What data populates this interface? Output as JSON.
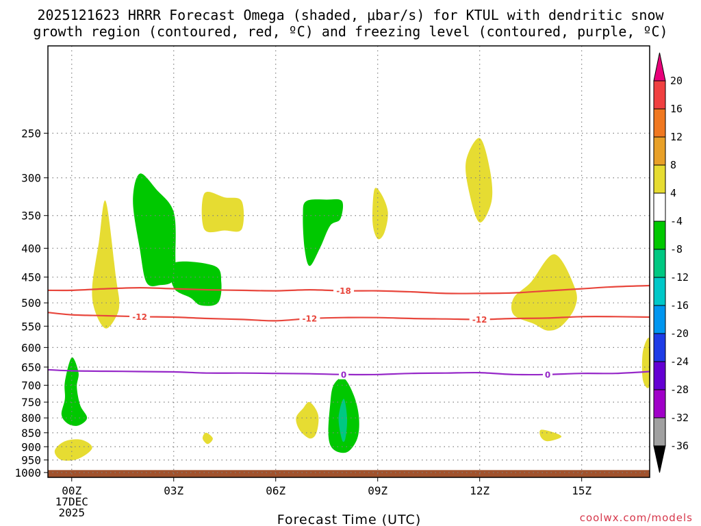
{
  "title_line1": "2025121623 HRRR Forecast Omega (shaded, μbar/s) for KTUL with dendritic snow",
  "title_line2": "growth region (contoured, red, ºC) and freezing level (contoured, purple, ºC)",
  "credit": "coolwx.com/models",
  "chart_data": {
    "type": "contour",
    "title": "2025121623 HRRR Forecast Omega (shaded, μbar/s) for KTUL with dendritic snow growth region (contoured, red, ºC) and freezing level (contoured, purple, ºC)",
    "xlabel": "Forecast Time (UTC)",
    "ylabel": "",
    "x_range_hours": [
      -0.7,
      17
    ],
    "x_ticks": [
      {
        "hour": 0,
        "label": "00Z",
        "sub1": "17DEC",
        "sub2": "2025"
      },
      {
        "hour": 3,
        "label": "03Z"
      },
      {
        "hour": 6,
        "label": "06Z"
      },
      {
        "hour": 9,
        "label": "09Z"
      },
      {
        "hour": 12,
        "label": "12Z"
      },
      {
        "hour": 15,
        "label": "15Z"
      }
    ],
    "y_range_mb": [
      175,
      1020
    ],
    "y_ticks": [
      {
        "p": 250,
        "label": "250"
      },
      {
        "p": 300,
        "label": "300"
      },
      {
        "p": 350,
        "label": "350"
      },
      {
        "p": 400,
        "label": "400"
      },
      {
        "p": 450,
        "label": "450"
      },
      {
        "p": 500,
        "label": "500"
      },
      {
        "p": 550,
        "label": "550"
      },
      {
        "p": 600,
        "label": "600"
      },
      {
        "p": 650,
        "label": "650"
      },
      {
        "p": 700,
        "label": "700"
      },
      {
        "p": 750,
        "label": "750"
      },
      {
        "p": 800,
        "label": "800"
      },
      {
        "p": 850,
        "label": "850"
      },
      {
        "p": 900,
        "label": "900"
      },
      {
        "p": 950,
        "label": "950"
      },
      {
        "p": 1000,
        "label": "1000"
      }
    ],
    "ground_pressure_mb": 990,
    "colorbar": {
      "bands": [
        {
          "color": "#e8007a"
        },
        {
          "color": "#f04040"
        },
        {
          "color": "#f07820"
        },
        {
          "color": "#e8a028"
        },
        {
          "color": "#e6dc32"
        },
        {
          "color": "#ffffff"
        },
        {
          "color": "#00c800"
        },
        {
          "color": "#00c882"
        },
        {
          "color": "#00c8c8"
        },
        {
          "color": "#0096f0"
        },
        {
          "color": "#1e3ce6"
        },
        {
          "color": "#6400d2"
        },
        {
          "color": "#a000c8"
        },
        {
          "color": "#a0a0a0"
        },
        {
          "color": "#000000"
        }
      ],
      "labels": [
        "20",
        "16",
        "12",
        "8",
        "4",
        "-4",
        "-8",
        "-12",
        "-16",
        "-20",
        "-24",
        "-28",
        "-32",
        "-36"
      ]
    },
    "contour_lines": [
      {
        "name": "-18C",
        "label": "-18",
        "color": "#e8463c",
        "points": [
          [
            -0.7,
            475
          ],
          [
            0,
            475
          ],
          [
            1,
            472
          ],
          [
            2,
            470
          ],
          [
            3,
            472
          ],
          [
            4,
            474
          ],
          [
            5,
            475
          ],
          [
            6,
            476
          ],
          [
            7,
            474
          ],
          [
            8,
            476
          ],
          [
            9,
            476
          ],
          [
            10,
            478
          ],
          [
            11,
            481
          ],
          [
            12,
            481
          ],
          [
            13,
            480
          ],
          [
            14,
            476
          ],
          [
            15,
            472
          ],
          [
            16,
            468
          ],
          [
            17,
            466
          ]
        ],
        "labels_at": [
          8
        ]
      },
      {
        "name": "-12C",
        "label": "-12",
        "color": "#e8463c",
        "points": [
          [
            -0.7,
            520
          ],
          [
            0,
            525
          ],
          [
            1,
            527
          ],
          [
            2,
            529
          ],
          [
            3,
            530
          ],
          [
            4,
            533
          ],
          [
            5,
            535
          ],
          [
            6,
            538
          ],
          [
            7,
            533
          ],
          [
            8,
            531
          ],
          [
            9,
            531
          ],
          [
            10,
            533
          ],
          [
            11,
            534
          ],
          [
            12,
            535
          ],
          [
            13,
            533
          ],
          [
            14,
            532
          ],
          [
            15,
            529
          ],
          [
            16,
            529
          ],
          [
            17,
            530
          ]
        ],
        "labels_at": [
          2,
          7,
          12
        ]
      },
      {
        "name": "0C freezing level",
        "label": "0",
        "color": "#9628c8",
        "points": [
          [
            -0.7,
            657
          ],
          [
            0,
            660
          ],
          [
            1,
            661
          ],
          [
            2,
            662
          ],
          [
            3,
            663
          ],
          [
            4,
            666
          ],
          [
            5,
            666
          ],
          [
            6,
            667
          ],
          [
            7,
            668
          ],
          [
            8,
            670
          ],
          [
            9,
            670
          ],
          [
            10,
            667
          ],
          [
            11,
            666
          ],
          [
            12,
            665
          ],
          [
            13,
            670
          ],
          [
            14,
            670
          ],
          [
            15,
            667
          ],
          [
            16,
            667
          ],
          [
            17,
            662
          ]
        ],
        "labels_at": [
          8,
          14
        ]
      }
    ],
    "shaded_regions": [
      {
        "value_range": "4 to 8",
        "color": "#e6dc32",
        "points": [
          [
            1.0,
            330
          ],
          [
            1.3,
            450
          ],
          [
            1.4,
            500
          ],
          [
            1.3,
            530
          ],
          [
            1.0,
            555
          ],
          [
            0.7,
            520
          ],
          [
            0.6,
            470
          ],
          [
            0.8,
            390
          ]
        ]
      },
      {
        "value_range": "-4 to -8",
        "color": "#00c800",
        "points": [
          [
            2.0,
            295
          ],
          [
            2.5,
            315
          ],
          [
            3.0,
            345
          ],
          [
            3.05,
            410
          ],
          [
            3.0,
            455
          ],
          [
            2.6,
            465
          ],
          [
            2.2,
            460
          ],
          [
            2.0,
            400
          ],
          [
            1.8,
            330
          ]
        ]
      },
      {
        "value_range": "-4 to -8",
        "color": "#00c800",
        "points": [
          [
            3.0,
            425
          ],
          [
            4.2,
            430
          ],
          [
            4.4,
            460
          ],
          [
            4.3,
            500
          ],
          [
            3.8,
            505
          ],
          [
            3.5,
            490
          ],
          [
            3.0,
            470
          ]
        ]
      },
      {
        "value_range": "4 to 8",
        "color": "#e6dc32",
        "points": [
          [
            3.9,
            320
          ],
          [
            4.5,
            325
          ],
          [
            5.0,
            330
          ],
          [
            5.0,
            370
          ],
          [
            4.5,
            372
          ],
          [
            3.9,
            370
          ]
        ]
      },
      {
        "value_range": "-4 to -8",
        "color": "#00c800",
        "points": [
          [
            6.9,
            330
          ],
          [
            7.5,
            328
          ],
          [
            7.95,
            330
          ],
          [
            7.9,
            355
          ],
          [
            7.6,
            365
          ],
          [
            7.3,
            400
          ],
          [
            7.0,
            430
          ],
          [
            6.85,
            400
          ],
          [
            6.8,
            350
          ]
        ]
      },
      {
        "value_range": "4 to 8",
        "color": "#e6dc32",
        "points": [
          [
            8.9,
            315
          ],
          [
            9.1,
            320
          ],
          [
            9.3,
            345
          ],
          [
            9.2,
            375
          ],
          [
            9.0,
            385
          ],
          [
            8.85,
            360
          ]
        ]
      },
      {
        "value_range": "4 to 8",
        "color": "#e6dc32",
        "points": [
          [
            12.0,
            255
          ],
          [
            12.3,
            290
          ],
          [
            12.35,
            330
          ],
          [
            12.0,
            360
          ],
          [
            11.7,
            320
          ],
          [
            11.6,
            280
          ]
        ]
      },
      {
        "value_range": "4 to 8",
        "color": "#e6dc32",
        "points": [
          [
            14.2,
            410
          ],
          [
            14.8,
            470
          ],
          [
            14.8,
            510
          ],
          [
            14.4,
            550
          ],
          [
            14.0,
            560
          ],
          [
            13.6,
            545
          ],
          [
            13.0,
            525
          ],
          [
            13.0,
            490
          ],
          [
            13.5,
            460
          ]
        ]
      },
      {
        "value_range": "4 to 8",
        "color": "#e6dc32",
        "points": [
          [
            17.0,
            580
          ],
          [
            17.0,
            700
          ],
          [
            16.8,
            685
          ],
          [
            16.8,
            610
          ]
        ]
      },
      {
        "value_range": "-4 to -8",
        "color": "#00c800",
        "points": [
          [
            0.0,
            625
          ],
          [
            0.2,
            665
          ],
          [
            0.15,
            705
          ],
          [
            0.25,
            760
          ],
          [
            0.45,
            800
          ],
          [
            0.2,
            825
          ],
          [
            -0.1,
            820
          ],
          [
            -0.3,
            790
          ],
          [
            -0.2,
            740
          ],
          [
            -0.2,
            690
          ]
        ]
      },
      {
        "value_range": "4 to 8",
        "color": "#e6dc32",
        "points": [
          [
            -0.5,
            915
          ],
          [
            -0.2,
            880
          ],
          [
            0.3,
            875
          ],
          [
            0.6,
            905
          ],
          [
            0.2,
            945
          ],
          [
            -0.3,
            950
          ]
        ]
      },
      {
        "value_range": "4 to 8",
        "color": "#e6dc32",
        "points": [
          [
            3.95,
            850
          ],
          [
            4.15,
            870
          ],
          [
            4.0,
            890
          ],
          [
            3.85,
            870
          ]
        ]
      },
      {
        "value_range": "4 to 8",
        "color": "#e6dc32",
        "points": [
          [
            7.0,
            750
          ],
          [
            7.25,
            790
          ],
          [
            7.2,
            850
          ],
          [
            7.0,
            870
          ],
          [
            6.7,
            840
          ],
          [
            6.6,
            800
          ],
          [
            6.8,
            770
          ]
        ]
      },
      {
        "value_range": "-4 to -8",
        "color": "#00c800",
        "points": [
          [
            8.0,
            680
          ],
          [
            8.3,
            730
          ],
          [
            8.45,
            800
          ],
          [
            8.4,
            870
          ],
          [
            8.1,
            920
          ],
          [
            7.7,
            910
          ],
          [
            7.55,
            860
          ],
          [
            7.6,
            760
          ],
          [
            7.7,
            700
          ]
        ]
      },
      {
        "value_range": "-8 to -12",
        "color": "#00c882",
        "points": [
          [
            8.0,
            740
          ],
          [
            8.1,
            800
          ],
          [
            8.05,
            870
          ],
          [
            7.95,
            875
          ],
          [
            7.85,
            800
          ]
        ]
      },
      {
        "value_range": "4 to 8",
        "color": "#e6dc32",
        "points": [
          [
            13.8,
            840
          ],
          [
            14.2,
            850
          ],
          [
            14.4,
            865
          ],
          [
            14.0,
            880
          ],
          [
            13.8,
            865
          ]
        ]
      }
    ]
  }
}
